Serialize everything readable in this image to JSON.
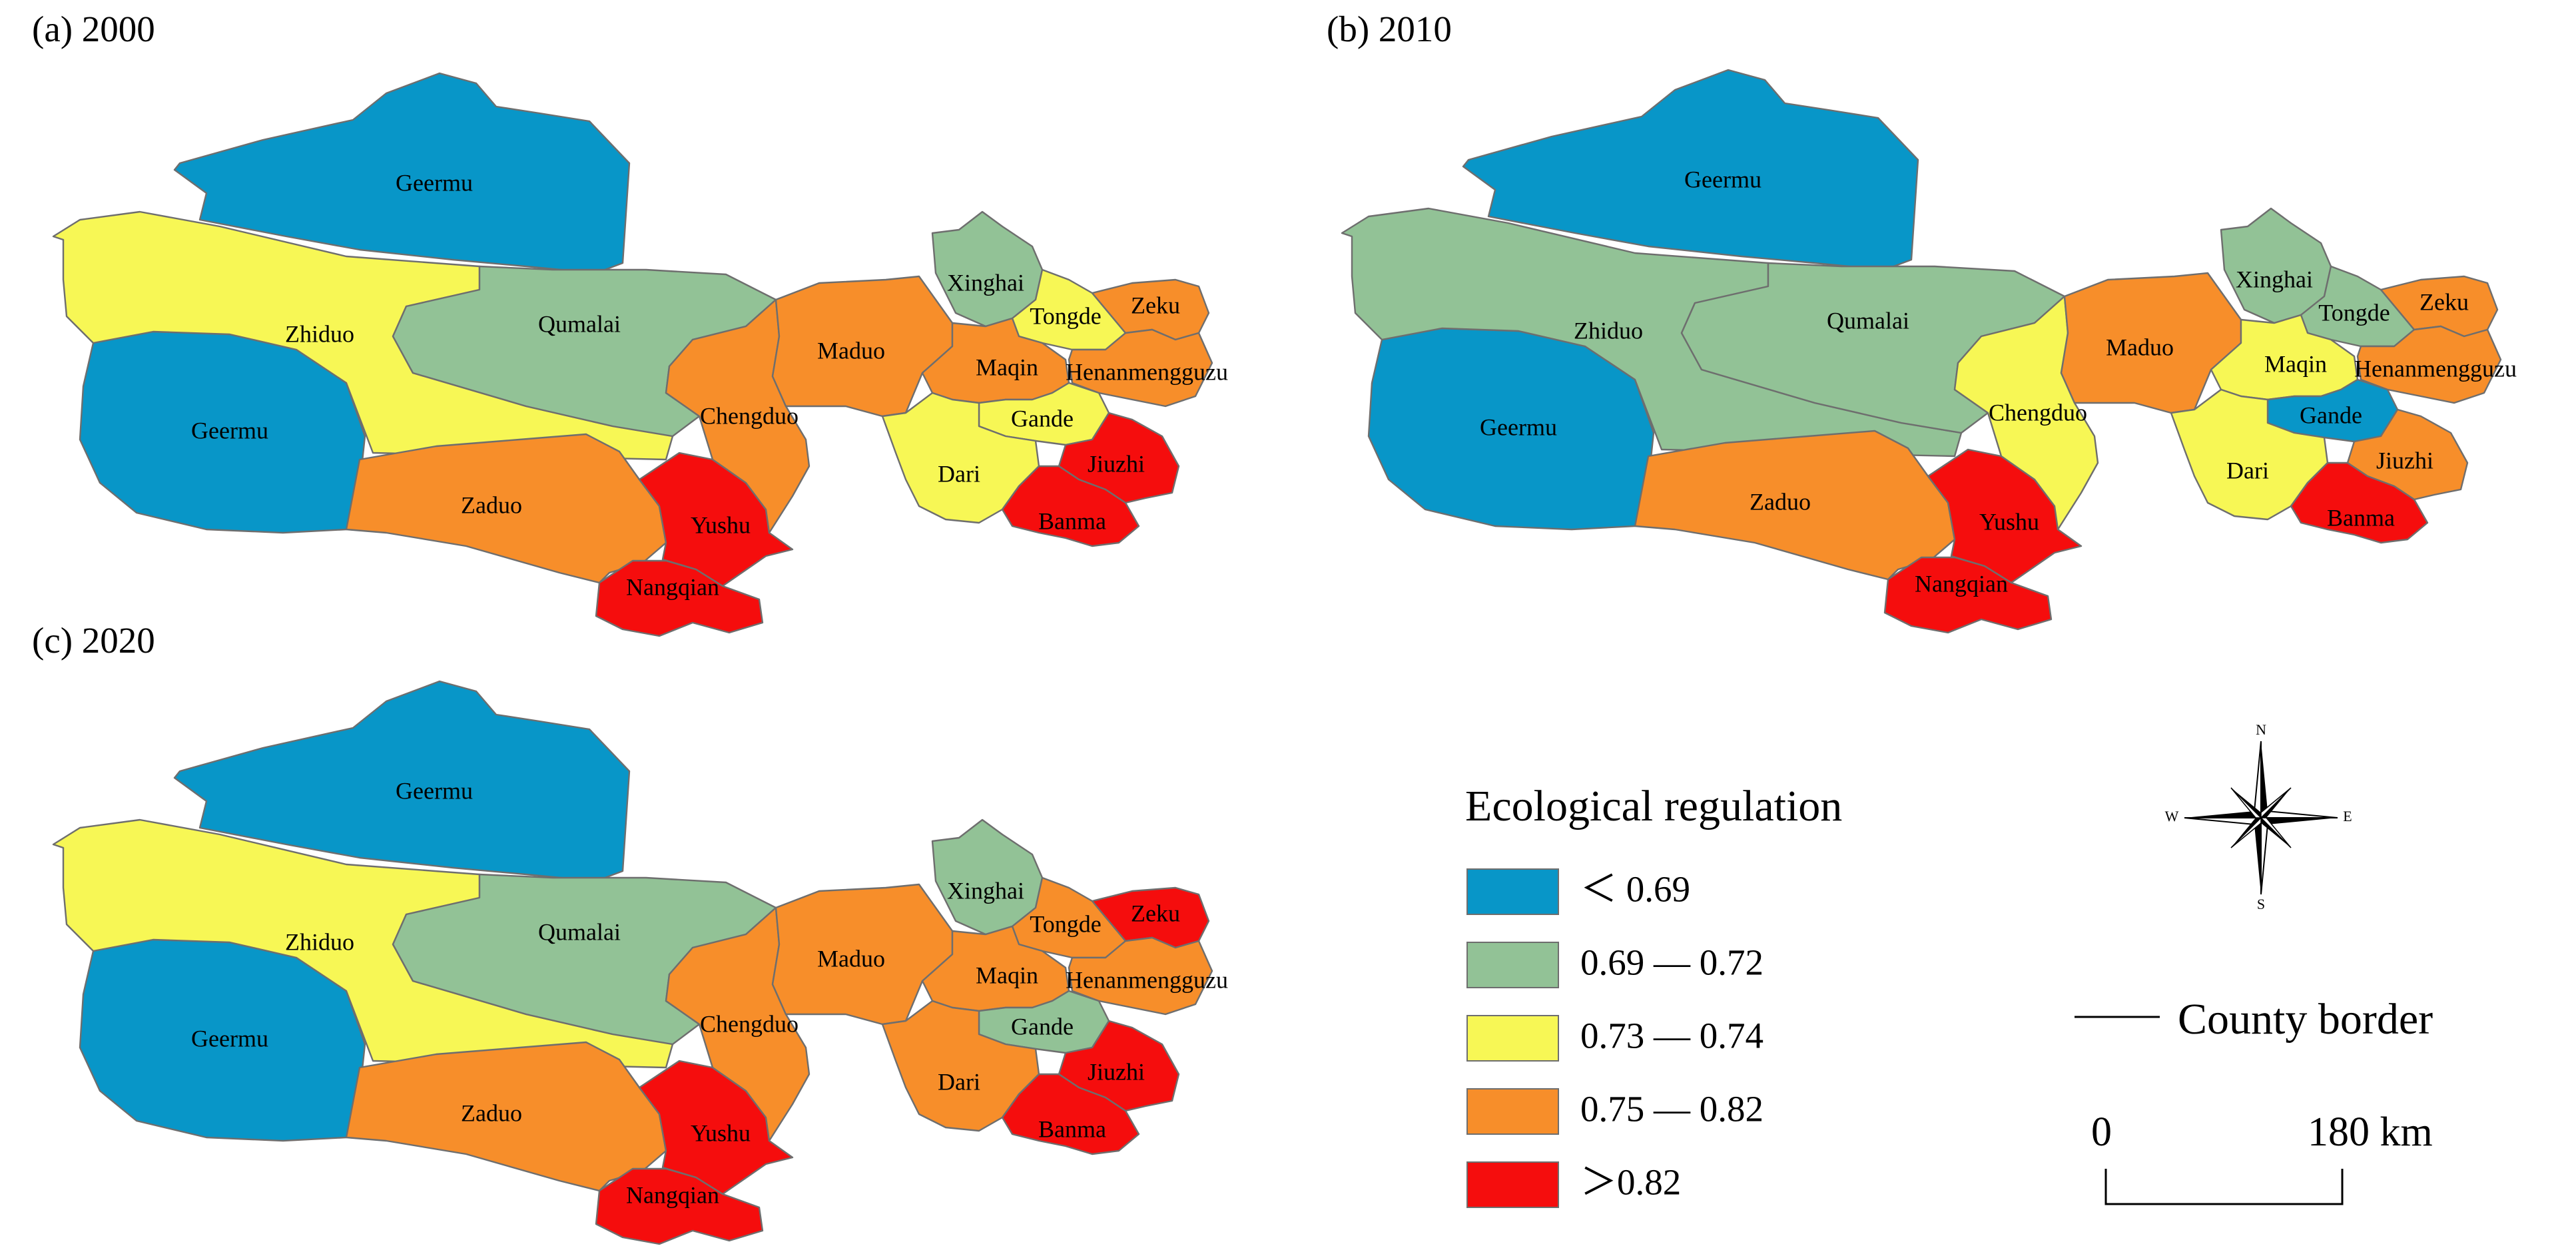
{
  "colors": {
    "c1": "#0896c8",
    "c2": "#92c296",
    "c3": "#f7f755",
    "c4": "#f78e2a",
    "c5": "#f50d0d",
    "border": "#6e6e6e"
  },
  "counties": [
    "Geermu",
    "Geermu",
    "Zhiduo",
    "Qumalai",
    "Zaduo",
    "Yushu",
    "Nangqian",
    "Chengduo",
    "Maduo",
    "Xinghai",
    "Tongde",
    "Zeku",
    "Maqin",
    "Henanmengguzu",
    "Gande",
    "Dari",
    "Jiuzhi",
    "Banma"
  ],
  "panels": [
    {
      "title": "(a) 2000",
      "classes": [
        "c1",
        "c1",
        "c3",
        "c2",
        "c4",
        "c5",
        "c5",
        "c4",
        "c4",
        "c2",
        "c3",
        "c4",
        "c4",
        "c4",
        "c3",
        "c3",
        "c5",
        "c5"
      ]
    },
    {
      "title": "(b) 2010",
      "classes": [
        "c1",
        "c1",
        "c2",
        "c2",
        "c4",
        "c5",
        "c5",
        "c3",
        "c4",
        "c2",
        "c2",
        "c4",
        "c3",
        "c4",
        "c1",
        "c3",
        "c4",
        "c5"
      ]
    },
    {
      "title": "(c) 2020",
      "classes": [
        "c1",
        "c1",
        "c3",
        "c2",
        "c4",
        "c5",
        "c5",
        "c4",
        "c4",
        "c2",
        "c4",
        "c5",
        "c4",
        "c4",
        "c2",
        "c4",
        "c5",
        "c5"
      ]
    }
  ],
  "legend": {
    "title": "Ecological regulation",
    "items": [
      {
        "label": "＜ 0.69",
        "class": "c1"
      },
      {
        "label": "0.69 — 0.72",
        "class": "c2"
      },
      {
        "label": "0.73 — 0.74",
        "class": "c3"
      },
      {
        "label": "0.75 — 0.82",
        "class": "c4"
      },
      {
        "label": "＞0.82",
        "class": "c5"
      }
    ]
  },
  "compass": {
    "n": "N",
    "s": "S",
    "e": "E",
    "w": "W"
  },
  "border_label": "County border",
  "scale": {
    "start": "0",
    "end": "180 km"
  }
}
